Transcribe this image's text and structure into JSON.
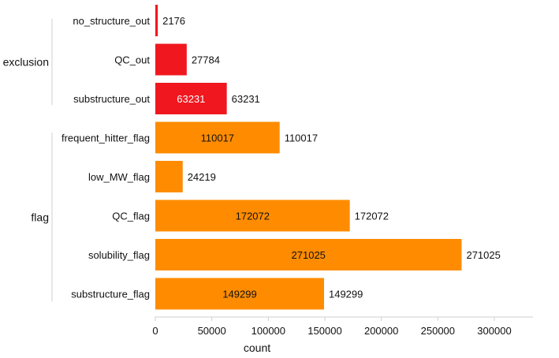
{
  "chart_data": {
    "type": "bar",
    "orientation": "horizontal",
    "xlabel": "count",
    "xlim": [
      0,
      310000
    ],
    "xticks": [
      0,
      50000,
      100000,
      150000,
      200000,
      250000,
      300000
    ],
    "groups": [
      {
        "label": "exclusion",
        "color": "#f0171f",
        "bars": [
          {
            "category": "no_structure_out",
            "value": 2176
          },
          {
            "category": "QC_out",
            "value": 27784
          },
          {
            "category": "substructure_out",
            "value": 63231
          }
        ]
      },
      {
        "label": "flag",
        "color": "#ff8c00",
        "bars": [
          {
            "category": "frequent_hitter_flag",
            "value": 110017
          },
          {
            "category": "low_MW_flag",
            "value": 24219
          },
          {
            "category": "QC_flag",
            "value": 172072
          },
          {
            "category": "solubility_flag",
            "value": 271025
          },
          {
            "category": "substructure_flag",
            "value": 149299
          }
        ]
      }
    ],
    "inside_label_colors": {
      "exclusion": "#ffffff",
      "flag": "#111111"
    }
  }
}
